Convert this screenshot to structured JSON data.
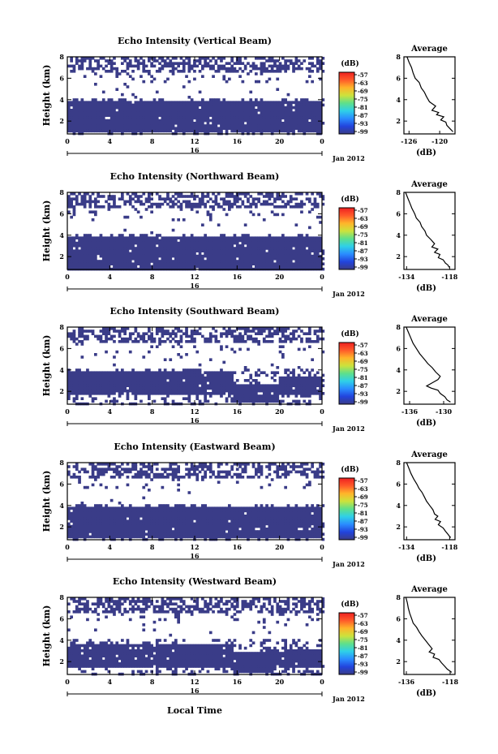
{
  "x_axis_label": "Local Time",
  "colorbar": {
    "unit_label": "(dB)",
    "ticks": [
      "-57",
      "-63",
      "-69",
      "-75",
      "-81",
      "-87",
      "-93",
      "-99"
    ],
    "colors": [
      "#3a3c88",
      "#2244dd",
      "#2a8cff",
      "#2fd0e8",
      "#5fe08a",
      "#cde23c",
      "#ffb42a",
      "#ff5a2a",
      "#ee2020"
    ]
  },
  "chart_data": [
    {
      "type": "heatmap",
      "title": "Echo Intensity (Vertical Beam)",
      "ylabel": "Height (km)",
      "y_ticks": [
        "2",
        "4",
        "6",
        "8"
      ],
      "ylim": [
        0.8,
        8
      ],
      "x_ticks": [
        "0",
        "4",
        "8",
        "12",
        "16",
        "20",
        "0"
      ],
      "xlim": [
        0,
        24
      ],
      "date_tick": "16",
      "date_label": "Jan 2012",
      "fill_color": "#3a3c88",
      "dense_layer_km": [
        {
          "x": [
            0,
            16
          ],
          "y": [
            1.0,
            3.8
          ]
        },
        {
          "x": [
            16,
            24
          ],
          "y": [
            1.0,
            3.9
          ]
        }
      ],
      "profile": {
        "title": "Average",
        "xlabel": "(dB)",
        "x_ticks": [
          "-126",
          "-120"
        ],
        "xlim": [
          -127,
          -117
        ],
        "y_ticks": [
          "2",
          "4",
          "6",
          "8"
        ],
        "ylim": [
          0.8,
          8
        ],
        "points": [
          [
            -126.4,
            8.0
          ],
          [
            -126.0,
            7.5
          ],
          [
            -125.5,
            7.0
          ],
          [
            -125.2,
            6.5
          ],
          [
            -124.8,
            6.0
          ],
          [
            -124.0,
            5.6
          ],
          [
            -123.6,
            5.1
          ],
          [
            -123.0,
            4.7
          ],
          [
            -122.6,
            4.3
          ],
          [
            -122.0,
            3.8
          ],
          [
            -121.4,
            3.6
          ],
          [
            -120.8,
            3.4
          ],
          [
            -121.5,
            3.0
          ],
          [
            -120.2,
            2.8
          ],
          [
            -120.6,
            2.6
          ],
          [
            -119.2,
            2.4
          ],
          [
            -119.8,
            2.1
          ],
          [
            -118.8,
            1.9
          ],
          [
            -118.6,
            1.6
          ],
          [
            -118.0,
            1.3
          ],
          [
            -117.6,
            1.1
          ],
          [
            -117.4,
            1.0
          ]
        ]
      }
    },
    {
      "type": "heatmap",
      "title": "Echo Intensity (Northward Beam)",
      "ylabel": "Height (km)",
      "y_ticks": [
        "2",
        "4",
        "6",
        "8"
      ],
      "ylim": [
        0.8,
        8
      ],
      "x_ticks": [
        "0",
        "4",
        "8",
        "12",
        "16",
        "20",
        "0"
      ],
      "xlim": [
        0,
        24
      ],
      "date_tick": "16",
      "date_label": "Jan 2012",
      "fill_color": "#3a3c88",
      "dense_layer_km": [
        {
          "x": [
            0,
            24
          ],
          "y": [
            1.8,
            3.8
          ]
        },
        {
          "x": [
            0,
            24
          ],
          "y": [
            0.8,
            1.6
          ]
        }
      ],
      "profile": {
        "title": "Average",
        "xlabel": "(dB)",
        "x_ticks": [
          "-134",
          "-118"
        ],
        "xlim": [
          -135,
          -116
        ],
        "y_ticks": [
          "2",
          "4",
          "6",
          "8"
        ],
        "ylim": [
          0.8,
          8
        ],
        "points": [
          [
            -134.4,
            8.0
          ],
          [
            -133.6,
            7.5
          ],
          [
            -132.8,
            7.0
          ],
          [
            -132.0,
            6.5
          ],
          [
            -131.0,
            6.0
          ],
          [
            -130.4,
            5.6
          ],
          [
            -129.0,
            5.2
          ],
          [
            -128.4,
            4.8
          ],
          [
            -127.2,
            4.4
          ],
          [
            -126.6,
            4.0
          ],
          [
            -125.0,
            3.6
          ],
          [
            -123.6,
            3.2
          ],
          [
            -124.6,
            2.9
          ],
          [
            -122.4,
            2.7
          ],
          [
            -123.6,
            2.4
          ],
          [
            -121.6,
            2.2
          ],
          [
            -122.2,
            1.9
          ],
          [
            -120.4,
            1.7
          ],
          [
            -119.6,
            1.4
          ],
          [
            -118.6,
            1.2
          ],
          [
            -118.2,
            1.0
          ]
        ]
      }
    },
    {
      "type": "heatmap",
      "title": "Echo Intensity (Southward Beam)",
      "ylabel": "Height (km)",
      "y_ticks": [
        "2",
        "4",
        "6",
        "8"
      ],
      "ylim": [
        0.8,
        8
      ],
      "x_ticks": [
        "0",
        "4",
        "8",
        "12",
        "16",
        "20",
        "0"
      ],
      "xlim": [
        0,
        24
      ],
      "date_tick": "16",
      "date_label": "Jan 2012",
      "fill_color": "#3a3c88",
      "dense_layer_km": [
        {
          "x": [
            0,
            15.7
          ],
          "y": [
            1.6,
            3.8
          ]
        },
        {
          "x": [
            15.7,
            20
          ],
          "y": [
            1.0,
            2.6
          ]
        },
        {
          "x": [
            20,
            24
          ],
          "y": [
            1.6,
            3.4
          ]
        }
      ],
      "profile": {
        "title": "Average",
        "xlabel": "(dB)",
        "x_ticks": [
          "-136",
          "-130"
        ],
        "xlim": [
          -137,
          -128
        ],
        "y_ticks": [
          "2",
          "4",
          "6",
          "8"
        ],
        "ylim": [
          0.8,
          8
        ],
        "points": [
          [
            -136.6,
            8.0
          ],
          [
            -136.2,
            7.5
          ],
          [
            -135.8,
            7.0
          ],
          [
            -135.4,
            6.5
          ],
          [
            -134.8,
            6.0
          ],
          [
            -134.2,
            5.5
          ],
          [
            -133.4,
            5.0
          ],
          [
            -132.8,
            4.6
          ],
          [
            -132.0,
            4.2
          ],
          [
            -131.4,
            3.8
          ],
          [
            -130.6,
            3.4
          ],
          [
            -131.0,
            3.1
          ],
          [
            -132.0,
            2.8
          ],
          [
            -133.0,
            2.5
          ],
          [
            -132.2,
            2.3
          ],
          [
            -131.0,
            2.1
          ],
          [
            -130.6,
            1.8
          ],
          [
            -129.8,
            1.5
          ],
          [
            -129.4,
            1.2
          ],
          [
            -128.8,
            1.0
          ]
        ]
      }
    },
    {
      "type": "heatmap",
      "title": "Echo Intensity (Eastward Beam)",
      "ylabel": "Height (km)",
      "y_ticks": [
        "2",
        "4",
        "6",
        "8"
      ],
      "ylim": [
        0.8,
        8
      ],
      "x_ticks": [
        "0",
        "4",
        "8",
        "12",
        "16",
        "20",
        "0"
      ],
      "xlim": [
        0,
        24
      ],
      "date_tick": "16",
      "date_label": "Jan 2012",
      "fill_color": "#3a3c88",
      "dense_layer_km": [
        {
          "x": [
            0,
            24
          ],
          "y": [
            1.0,
            3.8
          ]
        }
      ],
      "profile": {
        "title": "Average",
        "xlabel": "(dB)",
        "x_ticks": [
          "-134",
          "-118"
        ],
        "xlim": [
          -135,
          -116
        ],
        "y_ticks": [
          "2",
          "4",
          "6",
          "8"
        ],
        "ylim": [
          0.8,
          8
        ],
        "points": [
          [
            -134.0,
            8.0
          ],
          [
            -133.2,
            7.5
          ],
          [
            -132.4,
            7.0
          ],
          [
            -131.4,
            6.5
          ],
          [
            -130.2,
            6.0
          ],
          [
            -129.4,
            5.6
          ],
          [
            -128.2,
            5.2
          ],
          [
            -127.4,
            4.8
          ],
          [
            -126.6,
            4.4
          ],
          [
            -125.4,
            4.0
          ],
          [
            -124.2,
            3.6
          ],
          [
            -123.6,
            3.2
          ],
          [
            -122.4,
            3.0
          ],
          [
            -123.4,
            2.7
          ],
          [
            -121.4,
            2.5
          ],
          [
            -122.2,
            2.2
          ],
          [
            -120.4,
            1.9
          ],
          [
            -119.6,
            1.6
          ],
          [
            -118.6,
            1.3
          ],
          [
            -118.0,
            1.1
          ],
          [
            -117.6,
            1.0
          ]
        ]
      }
    },
    {
      "type": "heatmap",
      "title": "Echo Intensity (Westward Beam)",
      "ylabel": "Height (km)",
      "y_ticks": [
        "2",
        "4",
        "6",
        "8"
      ],
      "ylim": [
        0.8,
        8
      ],
      "x_ticks": [
        "0",
        "4",
        "8",
        "12",
        "16",
        "20",
        "0"
      ],
      "xlim": [
        0,
        24
      ],
      "date_tick": "16",
      "date_label": "Jan 2012",
      "fill_color": "#3a3c88",
      "dense_layer_km": [
        {
          "x": [
            0,
            15.7
          ],
          "y": [
            1.5,
            3.6
          ]
        },
        {
          "x": [
            15.7,
            19.3
          ],
          "y": [
            1.0,
            2.8
          ]
        },
        {
          "x": [
            19.3,
            24
          ],
          "y": [
            1.5,
            3.2
          ]
        }
      ],
      "profile": {
        "title": "Average",
        "xlabel": "(dB)",
        "x_ticks": [
          "-136",
          "-118"
        ],
        "xlim": [
          -137,
          -116
        ],
        "y_ticks": [
          "2",
          "4",
          "6",
          "8"
        ],
        "ylim": [
          0.8,
          8
        ],
        "points": [
          [
            -136.2,
            8.0
          ],
          [
            -135.6,
            7.5
          ],
          [
            -135.2,
            7.0
          ],
          [
            -134.6,
            6.5
          ],
          [
            -133.8,
            6.0
          ],
          [
            -133.2,
            5.6
          ],
          [
            -131.8,
            5.2
          ],
          [
            -130.8,
            4.8
          ],
          [
            -129.6,
            4.4
          ],
          [
            -128.2,
            4.0
          ],
          [
            -126.8,
            3.6
          ],
          [
            -125.4,
            3.2
          ],
          [
            -126.6,
            2.9
          ],
          [
            -124.4,
            2.7
          ],
          [
            -125.0,
            2.4
          ],
          [
            -122.6,
            2.2
          ],
          [
            -121.6,
            1.9
          ],
          [
            -120.4,
            1.6
          ],
          [
            -119.2,
            1.3
          ],
          [
            -118.0,
            1.1
          ],
          [
            -117.4,
            1.0
          ]
        ]
      }
    }
  ]
}
